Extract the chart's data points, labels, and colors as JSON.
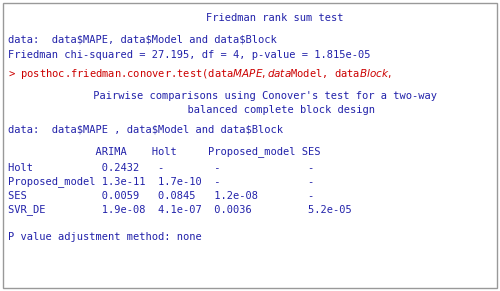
{
  "bg_color": "#ffffff",
  "border_color": "#999999",
  "blue_color": "#2222aa",
  "red_color": "#cc0000",
  "title_line": "        Friedman rank sum test",
  "line1": "data:  data$MAPE, data$Model and data$Block",
  "line2": "Friedman chi-squared = 27.195, df = 4, p-value = 1.815e-05",
  "red_line": "> posthoc.friedman.conover.test(data$MAPE, data$Model, data$Block,$",
  "center_line1": "     Pairwise comparisons using Conover's test for a two-way",
  "center_line2": "          balanced complete block design",
  "data_line": "data:  data$MAPE , data$Model and data$Block",
  "header_row": "              ARIMA    Holt     Proposed_model SES",
  "row_holt": "Holt           0.2432   -        -              -",
  "row_prop": "Proposed_model 1.3e-11  1.7e-10  -              -",
  "row_ses": "SES            0.0059   0.0845   1.2e-08        -",
  "row_svr": "SVR_DE         1.9e-08  4.1e-07  0.0036         5.2e-05",
  "footer": "P value adjustment method: none",
  "font_size": 7.5,
  "fig_width": 5.0,
  "fig_height": 2.91,
  "dpi": 100
}
